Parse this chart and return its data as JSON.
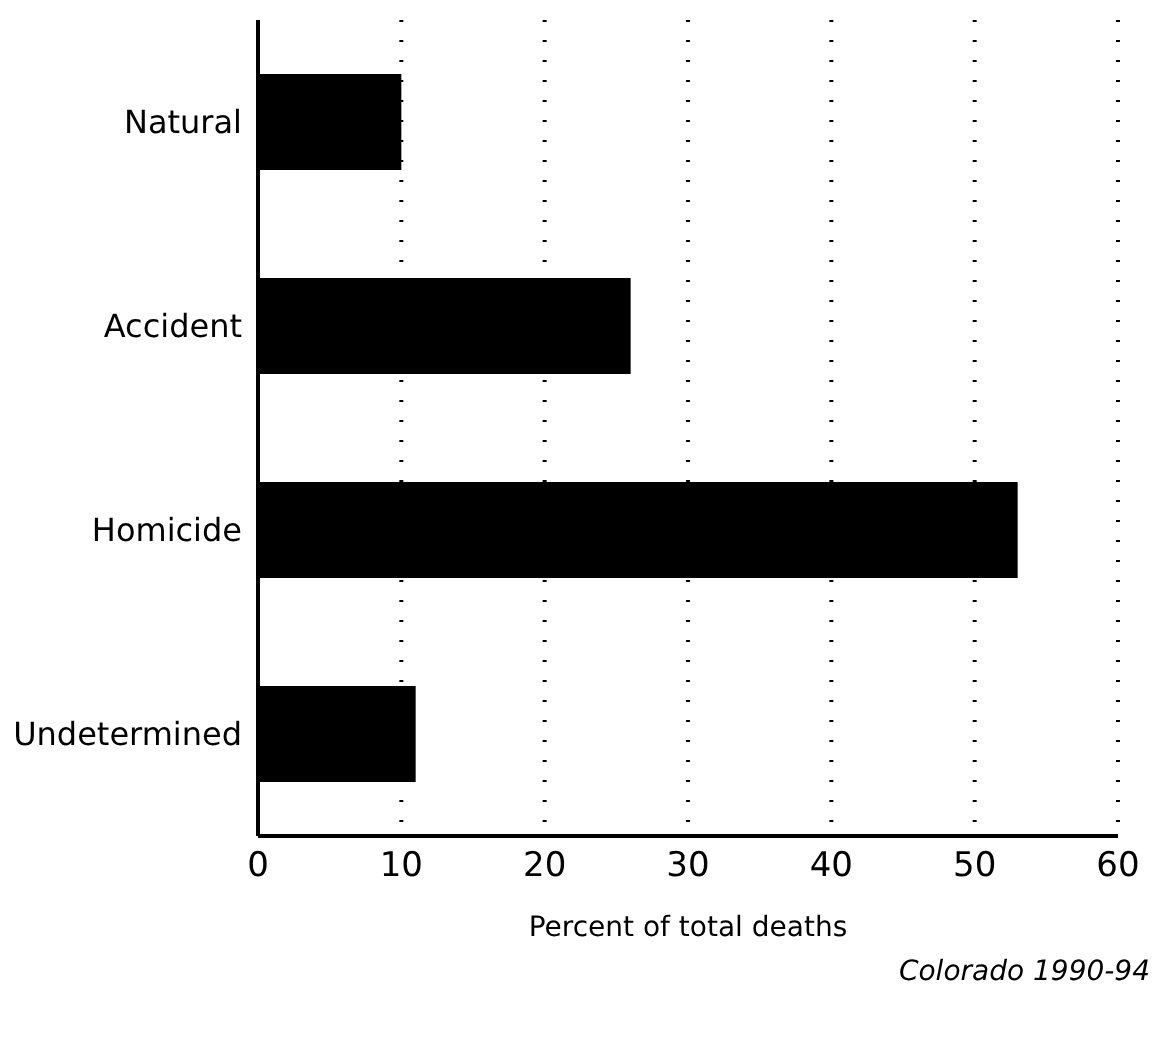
{
  "chart_data": {
    "type": "bar",
    "orientation": "horizontal",
    "categories": [
      "Natural",
      "Accident",
      "Homicide",
      "Undetermined"
    ],
    "values": [
      10,
      26,
      53,
      11
    ],
    "color": "#000000",
    "xlabel": "Percent of total deaths",
    "xlim": [
      0,
      60
    ],
    "xticks": [
      0,
      10,
      20,
      30,
      40,
      50,
      60
    ],
    "grid": "x",
    "annotations": [
      "Colorado 1990-94"
    ]
  }
}
